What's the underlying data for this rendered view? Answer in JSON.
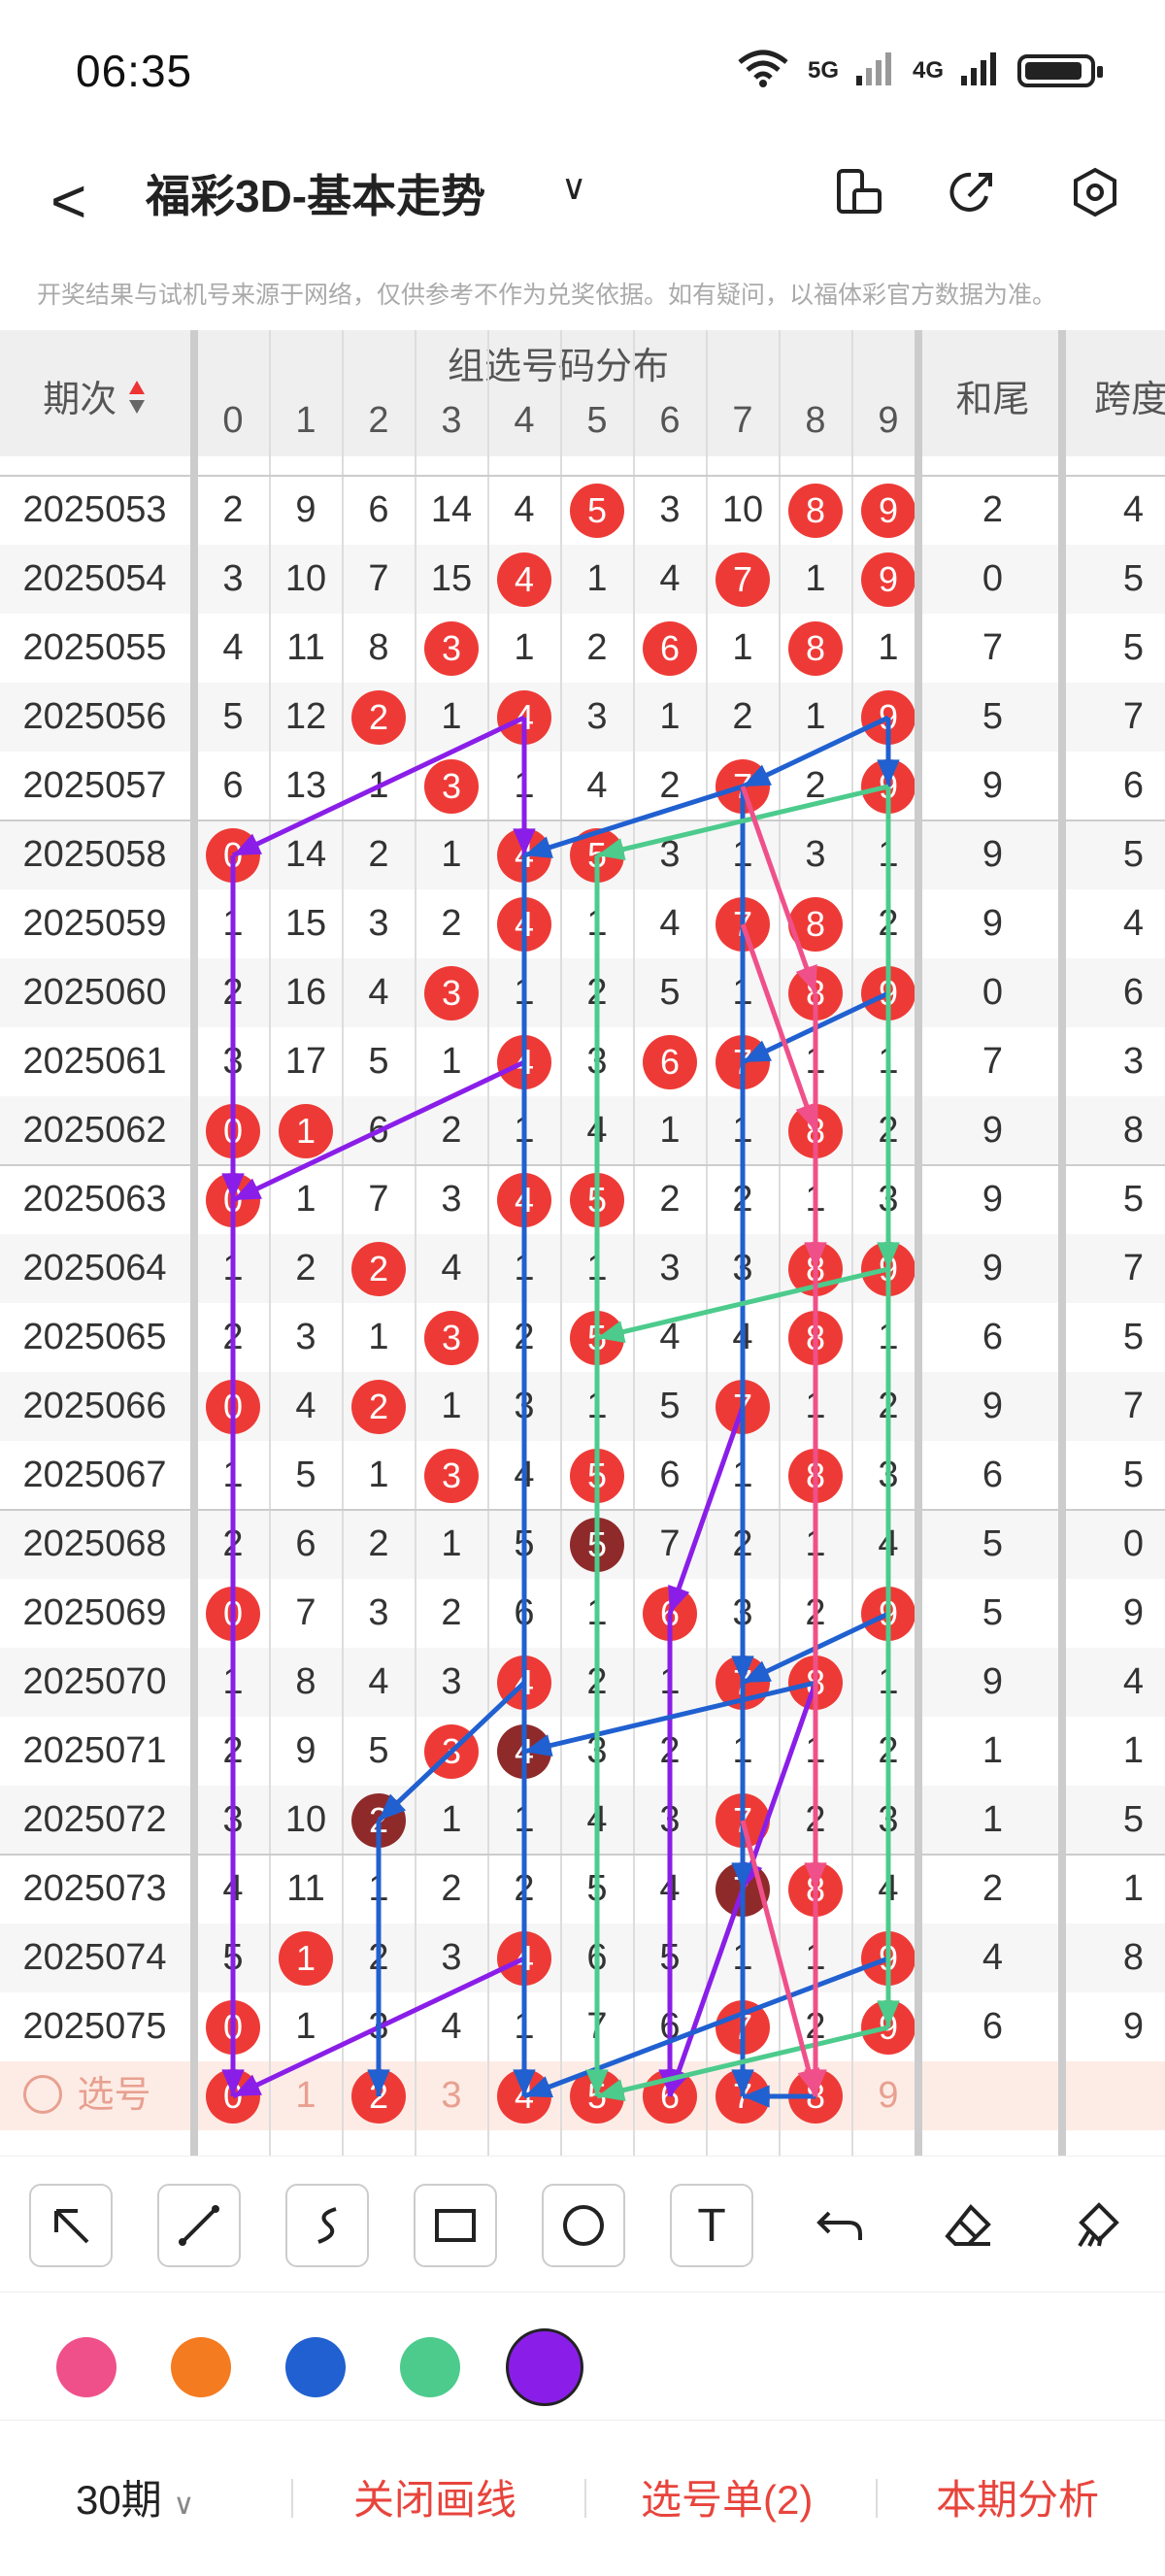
{
  "status": {
    "time": "06:35",
    "net1": "5G",
    "net2": "4G"
  },
  "nav": {
    "title": "福彩3D-基本走势",
    "back": "<",
    "chev": "∨"
  },
  "notice": "开奖结果与试机号来源于网络，仅供参考不作为兑奖依据。如有疑问，以福体彩官方数据为准。",
  "header": {
    "period": "期次",
    "dist": "组选号码分布",
    "digits": [
      "0",
      "1",
      "2",
      "3",
      "4",
      "5",
      "6",
      "7",
      "8",
      "9"
    ],
    "hewei": "和尾",
    "kuadu": "跨度"
  },
  "rows": [
    {
      "p": "2025053",
      "c": [
        "2",
        "9",
        "6",
        "14",
        "4",
        "5",
        "3",
        "10",
        "8",
        "9"
      ],
      "b": [
        5,
        8,
        9
      ],
      "d": [],
      "he": "2",
      "ku": "4"
    },
    {
      "p": "2025054",
      "c": [
        "3",
        "10",
        "7",
        "15",
        "4",
        "1",
        "4",
        "7",
        "1",
        "9"
      ],
      "b": [
        4,
        7,
        9
      ],
      "d": [],
      "he": "0",
      "ku": "5"
    },
    {
      "p": "2025055",
      "c": [
        "4",
        "11",
        "8",
        "3",
        "1",
        "2",
        "6",
        "1",
        "8",
        "1"
      ],
      "b": [
        3,
        6,
        8
      ],
      "d": [],
      "he": "7",
      "ku": "5"
    },
    {
      "p": "2025056",
      "c": [
        "5",
        "12",
        "2",
        "1",
        "4",
        "3",
        "1",
        "2",
        "1",
        "9"
      ],
      "b": [
        2,
        4,
        9
      ],
      "d": [],
      "he": "5",
      "ku": "7"
    },
    {
      "p": "2025057",
      "c": [
        "6",
        "13",
        "1",
        "3",
        "1",
        "4",
        "2",
        "7",
        "2",
        "9"
      ],
      "b": [
        3,
        7,
        9
      ],
      "d": [],
      "he": "9",
      "ku": "6"
    },
    {
      "p": "2025058",
      "c": [
        "0",
        "14",
        "2",
        "1",
        "4",
        "5",
        "3",
        "1",
        "3",
        "1"
      ],
      "b": [
        0,
        4,
        5
      ],
      "d": [],
      "he": "9",
      "ku": "5"
    },
    {
      "p": "2025059",
      "c": [
        "1",
        "15",
        "3",
        "2",
        "4",
        "1",
        "4",
        "7",
        "8",
        "2"
      ],
      "b": [
        4,
        7,
        8
      ],
      "d": [],
      "he": "9",
      "ku": "4"
    },
    {
      "p": "2025060",
      "c": [
        "2",
        "16",
        "4",
        "3",
        "1",
        "2",
        "5",
        "1",
        "8",
        "9"
      ],
      "b": [
        3,
        8,
        9
      ],
      "d": [],
      "he": "0",
      "ku": "6"
    },
    {
      "p": "2025061",
      "c": [
        "3",
        "17",
        "5",
        "1",
        "4",
        "3",
        "6",
        "7",
        "1",
        "1"
      ],
      "b": [
        4,
        6,
        7
      ],
      "d": [],
      "he": "7",
      "ku": "3"
    },
    {
      "p": "2025062",
      "c": [
        "0",
        "1",
        "6",
        "2",
        "1",
        "4",
        "1",
        "1",
        "8",
        "2"
      ],
      "b": [
        0,
        1,
        8
      ],
      "d": [],
      "he": "9",
      "ku": "8"
    },
    {
      "p": "2025063",
      "c": [
        "0",
        "1",
        "7",
        "3",
        "4",
        "5",
        "2",
        "2",
        "1",
        "3"
      ],
      "b": [
        0,
        4,
        5
      ],
      "d": [],
      "he": "9",
      "ku": "5"
    },
    {
      "p": "2025064",
      "c": [
        "1",
        "2",
        "2",
        "4",
        "1",
        "1",
        "3",
        "3",
        "8",
        "9"
      ],
      "b": [
        2,
        8,
        9
      ],
      "d": [],
      "he": "9",
      "ku": "7"
    },
    {
      "p": "2025065",
      "c": [
        "2",
        "3",
        "1",
        "3",
        "2",
        "5",
        "4",
        "4",
        "8",
        "1"
      ],
      "b": [
        3,
        5,
        8
      ],
      "d": [],
      "he": "6",
      "ku": "5"
    },
    {
      "p": "2025066",
      "c": [
        "0",
        "4",
        "2",
        "1",
        "3",
        "1",
        "5",
        "7",
        "1",
        "2"
      ],
      "b": [
        0,
        2,
        7
      ],
      "d": [],
      "he": "9",
      "ku": "7"
    },
    {
      "p": "2025067",
      "c": [
        "1",
        "5",
        "1",
        "3",
        "4",
        "5",
        "6",
        "1",
        "8",
        "3"
      ],
      "b": [
        3,
        5,
        8
      ],
      "d": [],
      "he": "6",
      "ku": "5"
    },
    {
      "p": "2025068",
      "c": [
        "2",
        "6",
        "2",
        "1",
        "5",
        "5",
        "7",
        "2",
        "1",
        "4"
      ],
      "b": [],
      "d": [
        5
      ],
      "he": "5",
      "ku": "0"
    },
    {
      "p": "2025069",
      "c": [
        "0",
        "7",
        "3",
        "2",
        "6",
        "1",
        "6",
        "3",
        "2",
        "9"
      ],
      "b": [
        0,
        6,
        9
      ],
      "d": [],
      "he": "5",
      "ku": "9"
    },
    {
      "p": "2025070",
      "c": [
        "1",
        "8",
        "4",
        "3",
        "4",
        "2",
        "1",
        "7",
        "8",
        "1"
      ],
      "b": [
        4,
        7,
        8
      ],
      "d": [],
      "he": "9",
      "ku": "4"
    },
    {
      "p": "2025071",
      "c": [
        "2",
        "9",
        "5",
        "3",
        "4",
        "3",
        "2",
        "1",
        "1",
        "2"
      ],
      "b": [
        3
      ],
      "d": [
        4
      ],
      "he": "1",
      "ku": "1"
    },
    {
      "p": "2025072",
      "c": [
        "3",
        "10",
        "2",
        "1",
        "1",
        "4",
        "3",
        "7",
        "2",
        "3"
      ],
      "b": [
        7
      ],
      "d": [
        2
      ],
      "he": "1",
      "ku": "5"
    },
    {
      "p": "2025073",
      "c": [
        "4",
        "11",
        "1",
        "2",
        "2",
        "5",
        "4",
        "7",
        "8",
        "4"
      ],
      "b": [
        8
      ],
      "d": [
        7
      ],
      "he": "2",
      "ku": "1"
    },
    {
      "p": "2025074",
      "c": [
        "5",
        "1",
        "2",
        "3",
        "4",
        "6",
        "5",
        "1",
        "1",
        "9"
      ],
      "b": [
        1,
        4,
        9
      ],
      "d": [],
      "he": "4",
      "ku": "8"
    },
    {
      "p": "2025075",
      "c": [
        "0",
        "1",
        "3",
        "4",
        "1",
        "7",
        "6",
        "7",
        "2",
        "9"
      ],
      "b": [
        0,
        7,
        9
      ],
      "d": [],
      "he": "6",
      "ku": "9"
    }
  ],
  "pick": {
    "label": "选号",
    "c": [
      "0",
      "1",
      "2",
      "3",
      "4",
      "5",
      "6",
      "7",
      "8",
      "9"
    ],
    "b": [
      0,
      2,
      4,
      5,
      6,
      7,
      8
    ]
  },
  "tools": [
    "arrow-tool",
    "line-tool",
    "curve-tool",
    "rect-tool",
    "circle-tool",
    "text-tool",
    "undo-tool",
    "eraser-tool",
    "clear-tool"
  ],
  "text_tool": "T",
  "palette": [
    "#f0508a",
    "#f47b20",
    "#2060d0",
    "#4ccb8c",
    "#8a1ee8"
  ],
  "bottom": {
    "periods": "30期",
    "close": "关闭画线",
    "selected": "选号单(2)",
    "analysis": "本期分析"
  },
  "accent": "#e8443c"
}
